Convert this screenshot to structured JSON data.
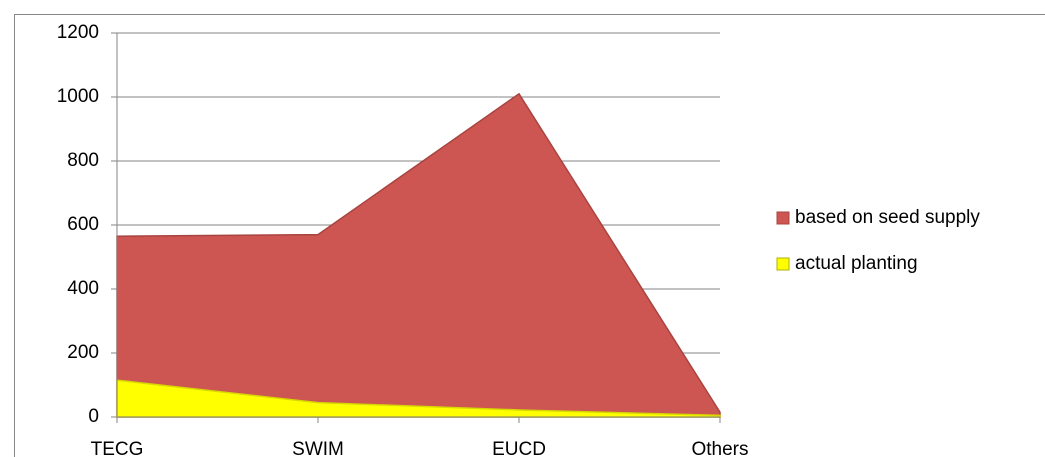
{
  "chart_data": {
    "type": "area",
    "categories": [
      "TECG",
      "SWIM",
      "EUCD",
      "Others"
    ],
    "series": [
      {
        "name": "based on seed supply",
        "color": "#cd5652",
        "values": [
          565,
          570,
          1010,
          15
        ]
      },
      {
        "name": "actual planting",
        "color": "#ffff00",
        "values": [
          115,
          45,
          22,
          5
        ]
      }
    ],
    "ylim": [
      0,
      1200
    ],
    "yticks": [
      0,
      200,
      400,
      600,
      800,
      1000,
      1200
    ],
    "grid": true,
    "legend": "right"
  }
}
